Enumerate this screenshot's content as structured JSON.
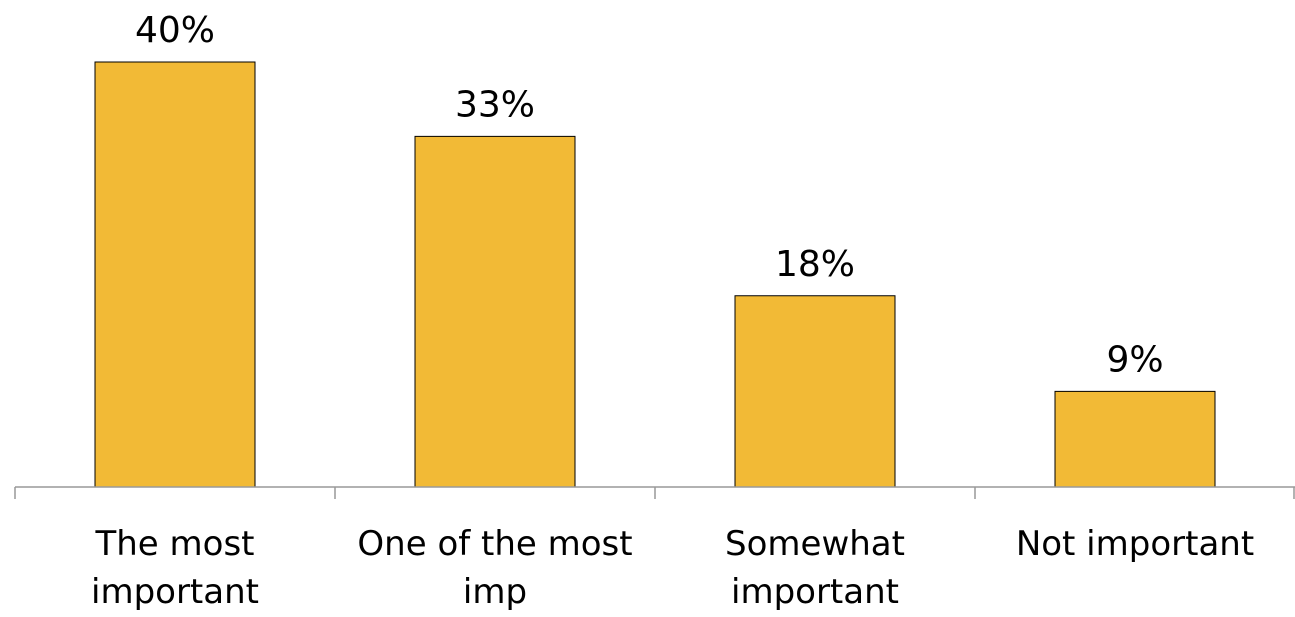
{
  "chart_data": {
    "type": "bar",
    "categories": [
      [
        "The most",
        "important"
      ],
      [
        "One of the most",
        "imp"
      ],
      [
        "Somewhat",
        "important"
      ],
      [
        "Not important"
      ]
    ],
    "values": [
      40,
      33,
      18,
      9
    ],
    "value_labels": [
      "40%",
      "33%",
      "18%",
      "9%"
    ],
    "ylim": [
      0,
      40
    ],
    "grid": false,
    "legend": "none",
    "colors": {
      "bar_fill": "#F2BA36",
      "bar_stroke": "#000000",
      "axis": "#999999"
    }
  }
}
